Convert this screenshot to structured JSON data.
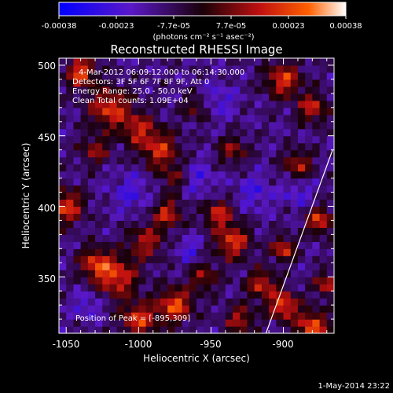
{
  "colorbar": {
    "ticks": [
      "-0.00038",
      "-0.00023",
      "-7.7e-05",
      "7.7e-05",
      "0.00023",
      "0.00038"
    ],
    "units": "(photons cm⁻² s⁻¹ asec⁻²)"
  },
  "chart_data": {
    "type": "heatmap",
    "title": "Reconstructed RHESSI Image",
    "xlabel": "Heliocentric X (arcsec)",
    "ylabel": "Heliocentric Y (arcsec)",
    "xlim": [
      -1055,
      -865
    ],
    "ylim": [
      310,
      505
    ],
    "xticks": [
      -1050,
      -1000,
      -950,
      -900
    ],
    "yticks": [
      350,
      400,
      450,
      500
    ],
    "color_range": [
      -0.00038,
      0.00038
    ],
    "colormap": [
      "#0000ff",
      "#5a18c8",
      "#1a0008",
      "#c01010",
      "#ff6000",
      "#ffffff"
    ],
    "limb_line": [
      [
        -912,
        310
      ],
      [
        -866,
        440
      ]
    ],
    "peak_marker": [
      -895,
      309
    ]
  },
  "annotations": {
    "time": "4-Mar-2012 06:09:12.000 to 06:14:30.000",
    "detectors": "Detectors: 3F 5F 6F 7F 8F 9F, Att 0",
    "energy": "Energy Range: 25.0 - 50.0 keV",
    "clean": "Clean     Total counts: 1.09E+04",
    "peak": "Position of Peak = [-895,309]"
  },
  "footer": {
    "timestamp": "1-May-2014 23:22"
  }
}
